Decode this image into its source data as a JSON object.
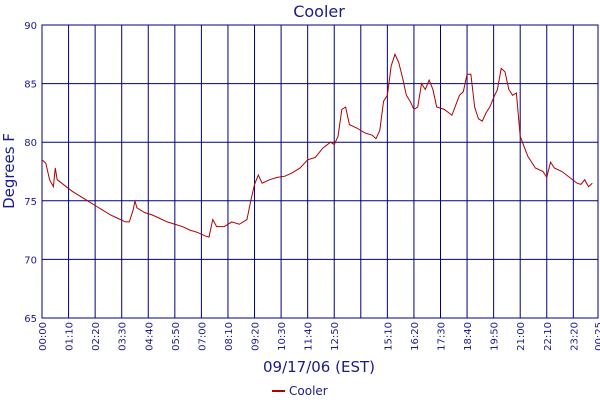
{
  "chart_data": {
    "type": "line",
    "title": "Cooler",
    "x_label": "09/17/06 (EST)",
    "y_label": "Degrees F",
    "x": [
      0,
      10,
      20,
      30,
      35,
      40,
      60,
      80,
      100,
      120,
      140,
      160,
      180,
      200,
      220,
      230,
      240,
      245,
      250,
      270,
      290,
      310,
      330,
      350,
      370,
      390,
      410,
      430,
      440,
      450,
      460,
      480,
      500,
      520,
      540,
      550,
      560,
      570,
      580,
      600,
      620,
      640,
      660,
      680,
      700,
      720,
      740,
      760,
      770,
      780,
      790,
      800,
      810,
      830,
      850,
      870,
      880,
      890,
      900,
      910,
      920,
      930,
      940,
      950,
      960,
      970,
      980,
      990,
      1000,
      1010,
      1020,
      1030,
      1040,
      1060,
      1080,
      1100,
      1110,
      1120,
      1130,
      1140,
      1150,
      1160,
      1170,
      1180,
      1190,
      1200,
      1210,
      1220,
      1230,
      1240,
      1250,
      1260,
      1280,
      1300,
      1320,
      1330,
      1340,
      1350,
      1370,
      1390,
      1410,
      1420,
      1430,
      1440,
      1450
    ],
    "series": [
      {
        "name": "Cooler",
        "color": "#b00000",
        "values": [
          78.5,
          78.2,
          76.8,
          76.2,
          77.8,
          76.8,
          76.3,
          75.8,
          75.4,
          75,
          74.6,
          74.2,
          73.8,
          73.5,
          73.2,
          73.2,
          74.2,
          75,
          74.4,
          74,
          73.8,
          73.5,
          73.2,
          73,
          72.8,
          72.5,
          72.3,
          72,
          71.9,
          73.4,
          72.8,
          72.8,
          73.2,
          73,
          73.4,
          75,
          76.4,
          77.2,
          76.5,
          76.8,
          77,
          77.1,
          77.4,
          77.8,
          78.5,
          78.7,
          79.5,
          80,
          79.8,
          80.5,
          82.8,
          83,
          81.5,
          81.2,
          80.8,
          80.6,
          80.3,
          81,
          83.5,
          84,
          86.5,
          87.5,
          86.8,
          85.5,
          84,
          83.5,
          82.8,
          83,
          85,
          84.5,
          85.3,
          84.5,
          83,
          82.8,
          82.3,
          84,
          84.3,
          85.8,
          85.8,
          83,
          82,
          81.8,
          82.5,
          83,
          83.8,
          84.5,
          86.3,
          86,
          84.5,
          84,
          84.2,
          80.5,
          78.8,
          77.8,
          77.5,
          77,
          78.3,
          77.8,
          77.5,
          77,
          76.5,
          76.4,
          76.8,
          76.2,
          76.5
        ]
      }
    ],
    "xlim": [
      0,
      1465
    ],
    "xticks": [
      {
        "value": 0,
        "label": "00:00"
      },
      {
        "value": 70,
        "label": "01:10"
      },
      {
        "value": 140,
        "label": "02:20"
      },
      {
        "value": 210,
        "label": "03:30"
      },
      {
        "value": 280,
        "label": "04:40"
      },
      {
        "value": 350,
        "label": "05:50"
      },
      {
        "value": 420,
        "label": "07:00"
      },
      {
        "value": 490,
        "label": "08:10"
      },
      {
        "value": 560,
        "label": "09:20"
      },
      {
        "value": 630,
        "label": "10:30"
      },
      {
        "value": 700,
        "label": "11:40"
      },
      {
        "value": 770,
        "label": "12:50"
      },
      {
        "value": 840,
        "label": null
      },
      {
        "value": 910,
        "label": "15:10"
      },
      {
        "value": 980,
        "label": "16:20"
      },
      {
        "value": 1050,
        "label": "17:30"
      },
      {
        "value": 1120,
        "label": "18:40"
      },
      {
        "value": 1190,
        "label": "19:50"
      },
      {
        "value": 1260,
        "label": "21:00"
      },
      {
        "value": 1330,
        "label": "22:10"
      },
      {
        "value": 1400,
        "label": "23:20"
      },
      {
        "value": 1465,
        "label": "00:25"
      }
    ],
    "ylim": [
      65,
      90
    ],
    "yticks": [
      65,
      70,
      75,
      80,
      85,
      90
    ],
    "grid": true,
    "legend": "bottom"
  }
}
